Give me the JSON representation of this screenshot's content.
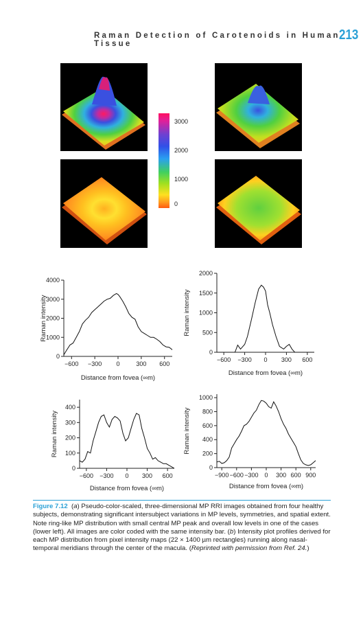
{
  "header": {
    "running_title": "Raman Detection of Carotenoids in Human Tissue",
    "page_number": "213"
  },
  "colorbar": {
    "ticks": [
      "3000",
      "2000",
      "1000",
      "0"
    ]
  },
  "caption": {
    "figure_label": "Figure 7.12",
    "part_a_prefix": "(",
    "part_a_letter": "a",
    "text_1": ") Pseudo-color-scaled, three-dimensional MP RRI images obtained from four healthy subjects, demonstrating significant intersubject variations in MP levels, symmetries, and spatial extent. Note ring-like MP distribution with small central MP peak and overall low levels in one of the cases (lower left). All images are color coded with the same intensity bar. (",
    "part_b_letter": "b",
    "text_2": ") Intensity plot profiles derived for each MP distribution from pixel intensity maps (22 × 1400 µm rectangles) running along nasal-temporal meridians through the center of the macula. (",
    "reprint": "Reprinted with permission from Ref. 24.",
    "text_3": ")"
  },
  "chart_data": [
    {
      "type": "line",
      "xlabel": "Distance from fovea (∞m)",
      "ylabel": "Raman intensity",
      "xticks": [
        "−600",
        "−300",
        "0",
        "300",
        "600"
      ],
      "yticks": [
        "0",
        "1000",
        "2000",
        "3000",
        "4000"
      ],
      "xlim": [
        -700,
        700
      ],
      "ylim": [
        0,
        4000
      ],
      "x": [
        -700,
        -660,
        -620,
        -580,
        -540,
        -500,
        -460,
        -420,
        -380,
        -340,
        -300,
        -260,
        -220,
        -180,
        -140,
        -100,
        -60,
        -20,
        0,
        20,
        60,
        100,
        140,
        180,
        220,
        260,
        300,
        340,
        380,
        420,
        460,
        500,
        540,
        580,
        620,
        660,
        700
      ],
      "y": [
        80,
        350,
        600,
        700,
        1000,
        1300,
        1700,
        1900,
        2050,
        2300,
        2450,
        2600,
        2750,
        2900,
        3000,
        3050,
        3200,
        3300,
        3250,
        3150,
        2900,
        2600,
        2250,
        2050,
        1950,
        1550,
        1300,
        1200,
        1100,
        1000,
        1000,
        900,
        780,
        600,
        500,
        480,
        350
      ]
    },
    {
      "type": "line",
      "xlabel": "Distance from fovea (∞m)",
      "ylabel": "Raman intensity",
      "xticks": [
        "−600",
        "−300",
        "0",
        "300",
        "600"
      ],
      "yticks": [
        "0",
        "500",
        "1000",
        "1500",
        "2000"
      ],
      "xlim": [
        -700,
        700
      ],
      "ylim": [
        0,
        2000
      ],
      "x": [
        -700,
        -600,
        -500,
        -440,
        -400,
        -360,
        -300,
        -260,
        -200,
        -150,
        -100,
        -60,
        -30,
        0,
        30,
        60,
        100,
        150,
        200,
        260,
        300,
        340,
        380,
        420,
        500,
        600,
        700
      ],
      "y": [
        0,
        0,
        0,
        0,
        180,
        80,
        200,
        400,
        850,
        1250,
        1600,
        1700,
        1650,
        1550,
        1200,
        1000,
        700,
        400,
        150,
        80,
        150,
        200,
        80,
        0,
        0,
        0,
        0
      ]
    },
    {
      "type": "line",
      "xlabel": "Distance from fovea (∞m)",
      "ylabel": "Raman intensity",
      "xticks": [
        "−600",
        "−300",
        "0",
        "300",
        "600"
      ],
      "yticks": [
        "0",
        "100",
        "200",
        "300",
        "400"
      ],
      "xlim": [
        -700,
        700
      ],
      "ylim": [
        0,
        450
      ],
      "x": [
        -700,
        -660,
        -620,
        -580,
        -540,
        -500,
        -460,
        -420,
        -380,
        -340,
        -300,
        -260,
        -220,
        -180,
        -140,
        -100,
        -60,
        -20,
        20,
        60,
        100,
        140,
        180,
        220,
        260,
        300,
        340,
        380,
        420,
        460,
        500,
        540,
        580,
        620,
        660,
        700
      ],
      "y": [
        50,
        40,
        60,
        110,
        100,
        180,
        240,
        300,
        340,
        350,
        300,
        270,
        320,
        340,
        330,
        310,
        230,
        180,
        200,
        260,
        320,
        360,
        350,
        260,
        200,
        130,
        100,
        60,
        70,
        50,
        40,
        30,
        30,
        20,
        10,
        0
      ]
    },
    {
      "type": "line",
      "xlabel": "Distance from fovea (∞m)",
      "ylabel": "Raman intensity",
      "xticks": [
        "−900",
        "−600",
        "−300",
        "0",
        "300",
        "600",
        "900"
      ],
      "yticks": [
        "0",
        "200",
        "400",
        "600",
        "800",
        "1000"
      ],
      "xlim": [
        -1000,
        1000
      ],
      "ylim": [
        0,
        1050
      ],
      "x": [
        -1000,
        -950,
        -900,
        -850,
        -800,
        -750,
        -700,
        -650,
        -600,
        -550,
        -500,
        -450,
        -400,
        -350,
        -300,
        -250,
        -200,
        -150,
        -100,
        -50,
        0,
        50,
        100,
        150,
        200,
        250,
        300,
        350,
        400,
        450,
        500,
        550,
        600,
        650,
        700,
        750,
        800,
        850,
        900,
        950,
        1000
      ],
      "y": [
        80,
        90,
        60,
        70,
        100,
        150,
        280,
        340,
        400,
        450,
        520,
        600,
        620,
        660,
        720,
        780,
        820,
        900,
        960,
        950,
        920,
        870,
        850,
        940,
        880,
        800,
        700,
        620,
        560,
        480,
        420,
        360,
        300,
        200,
        110,
        60,
        40,
        30,
        40,
        70,
        100
      ]
    }
  ]
}
